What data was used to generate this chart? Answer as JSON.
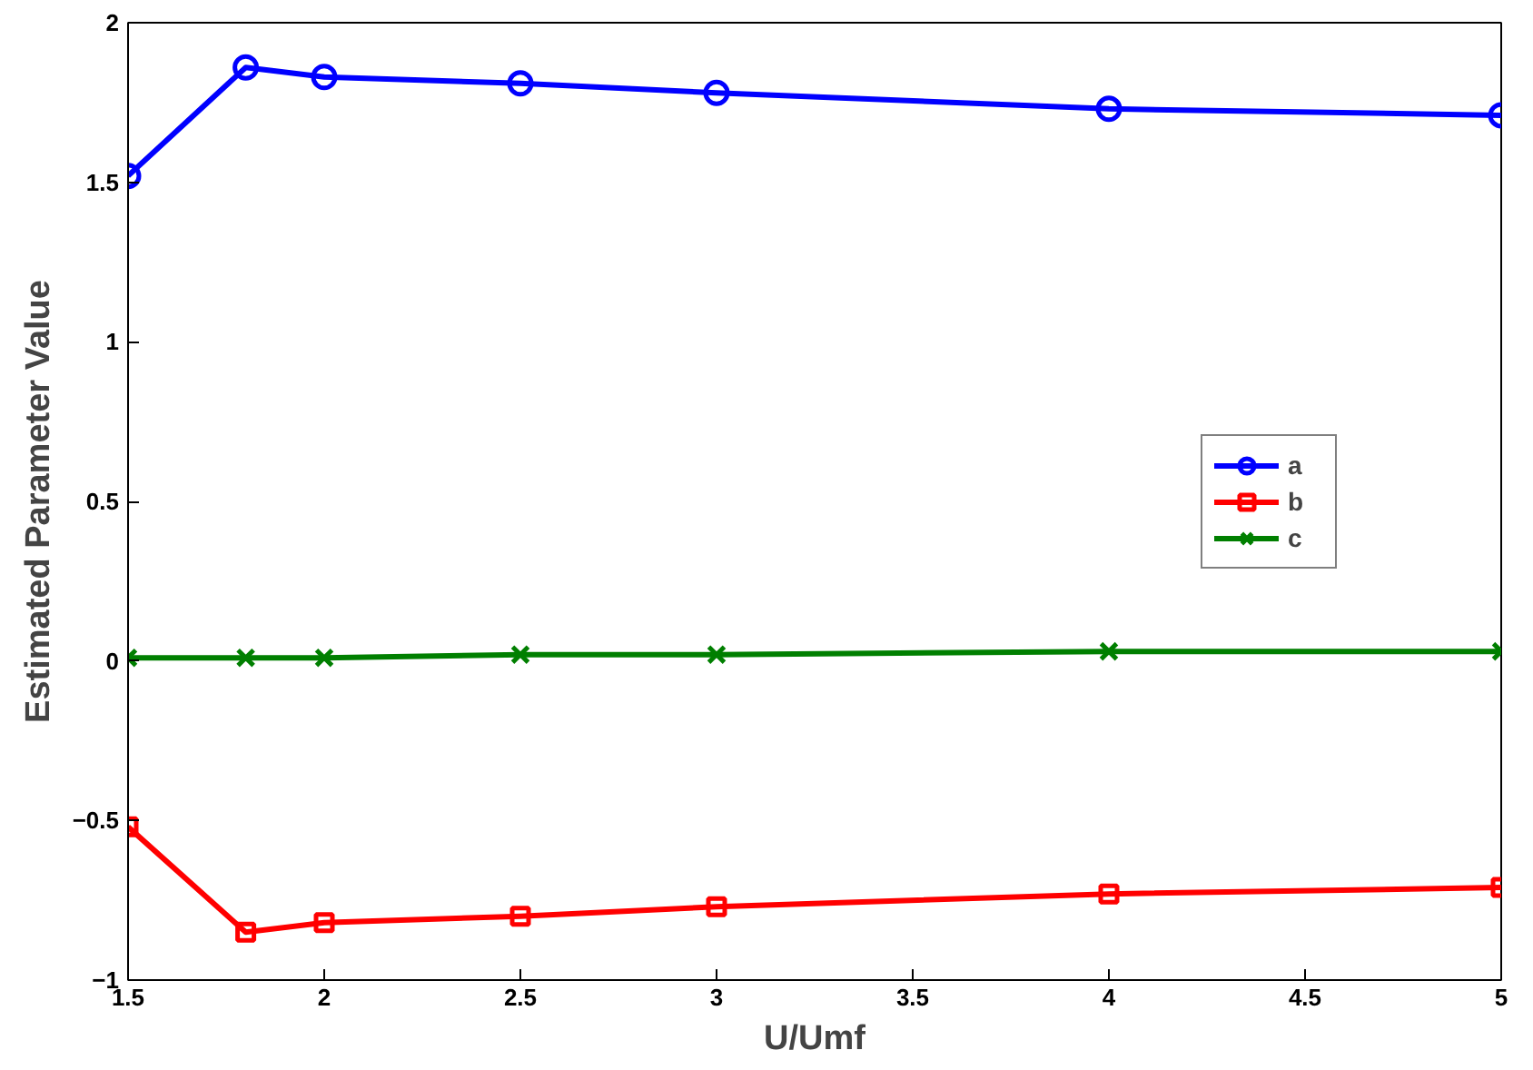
{
  "chart_data": {
    "type": "line",
    "xlabel": "U/Umf",
    "ylabel": "Estimated Parameter Value",
    "x": [
      1.5,
      1.8,
      2,
      2.5,
      3,
      4,
      5
    ],
    "series": [
      {
        "name": "a",
        "color": "#0000ff",
        "marker": "circle",
        "values": [
          1.52,
          1.86,
          1.83,
          1.81,
          1.78,
          1.73,
          1.71
        ]
      },
      {
        "name": "b",
        "color": "#ff0000",
        "marker": "square",
        "values": [
          -0.52,
          -0.85,
          -0.82,
          -0.8,
          -0.77,
          -0.73,
          -0.71
        ]
      },
      {
        "name": "c",
        "color": "#007f00",
        "marker": "x",
        "values": [
          0.01,
          0.01,
          0.01,
          0.02,
          0.02,
          0.03,
          0.03
        ]
      }
    ],
    "xlim": [
      1.5,
      5
    ],
    "ylim": [
      -1,
      2
    ],
    "xticks": [
      1.5,
      2,
      2.5,
      3,
      3.5,
      4,
      4.5,
      5
    ],
    "yticks": [
      -1,
      -0.5,
      0,
      0.5,
      1,
      1.5,
      2
    ],
    "grid": false,
    "legend": "right",
    "line_style": "solid"
  }
}
